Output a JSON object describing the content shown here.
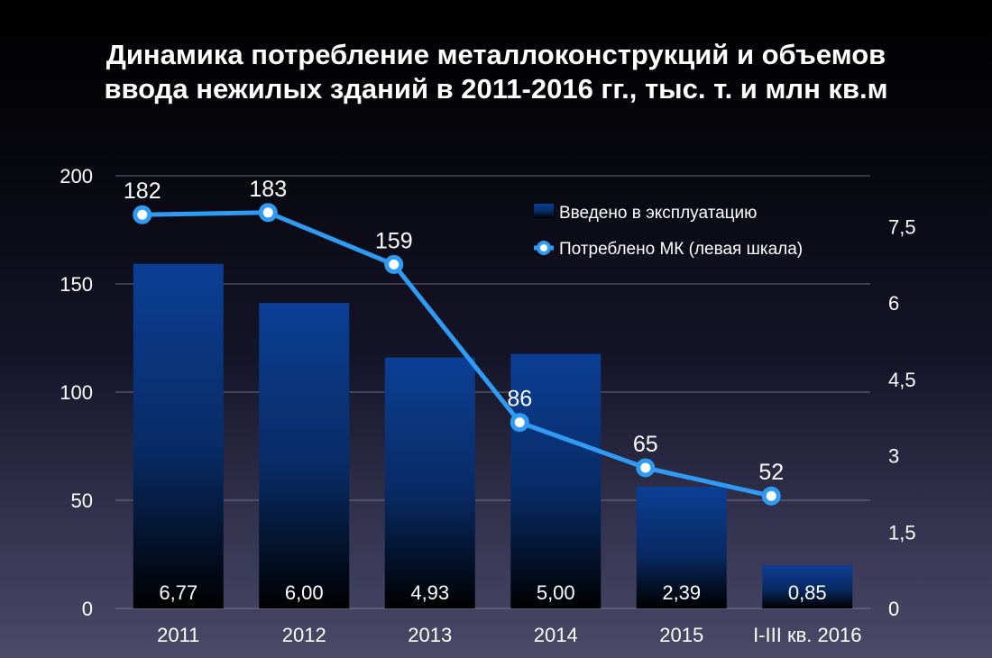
{
  "chart_data": {
    "type": "bar",
    "title_lines": [
      "Динамика потребление металлоконструкций и объемов",
      "ввода нежилых зданий в 2011-2016 гг., тыс. т. и млн кв.м"
    ],
    "categories": [
      "2011",
      "2012",
      "2013",
      "2014",
      "2015",
      "I-III кв. 2016"
    ],
    "series": [
      {
        "name": "Введено в эксплуатацию",
        "kind": "bar",
        "axis": "right",
        "values": [
          6.77,
          6.0,
          4.93,
          5.0,
          2.39,
          0.85
        ],
        "labels": [
          "6,77",
          "6,00",
          "4,93",
          "5,00",
          "2,39",
          "0,85"
        ],
        "color": "#0a3c8c"
      },
      {
        "name": "Потреблено МК (левая шкала)",
        "kind": "line",
        "axis": "left",
        "values": [
          182,
          183,
          159,
          86,
          65,
          52
        ],
        "labels": [
          "182",
          "183",
          "159",
          "86",
          "65",
          "52"
        ],
        "color": "#2f9bf2"
      }
    ],
    "left_axis": {
      "ylim": [
        0,
        200
      ],
      "ticks": [
        0,
        50,
        100,
        150,
        200
      ],
      "tick_labels": [
        "0",
        "50",
        "100",
        "150",
        "200"
      ]
    },
    "right_axis": {
      "ylim": [
        0,
        8.5
      ],
      "ticks": [
        0,
        1.5,
        3,
        4.5,
        6,
        7.5
      ],
      "tick_labels": [
        "0",
        "1,5",
        "3",
        "4,5",
        "6",
        "7,5"
      ]
    },
    "grid": true,
    "legend_position": "top-right"
  }
}
